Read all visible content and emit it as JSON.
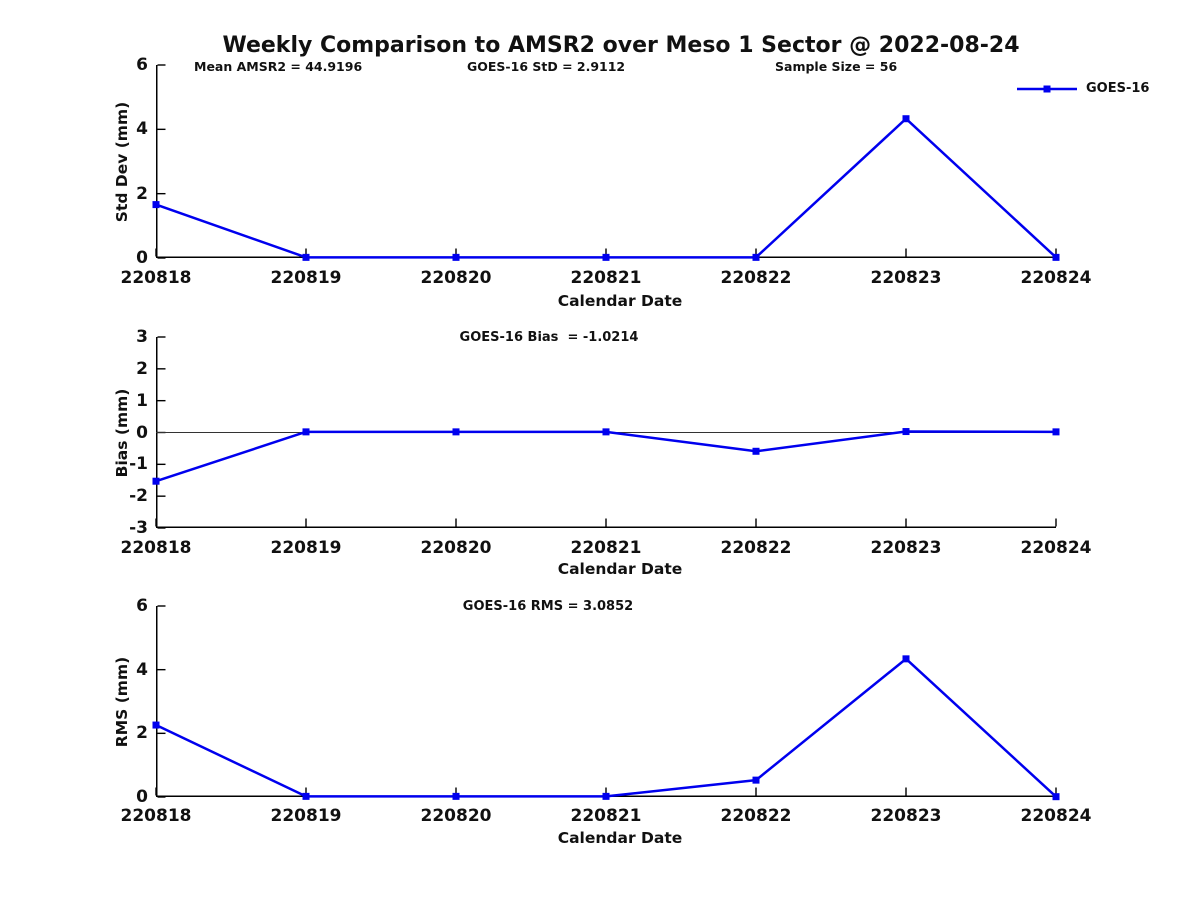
{
  "title": "Weekly Comparison to AMSR2 over Meso 1 Sector @ 2022-08-24",
  "accent_color": "#0000ee",
  "chart_data": [
    {
      "type": "line",
      "panel": "std-dev",
      "annotations": [
        "Mean AMSR2 = 44.9196",
        "GOES-16 StD = 2.9112",
        "Sample Size = 56"
      ],
      "categories": [
        "220818",
        "220819",
        "220820",
        "220821",
        "220822",
        "220823",
        "220824"
      ],
      "series": [
        {
          "name": "GOES-16",
          "values": [
            1.66,
            0.02,
            0.02,
            0.02,
            0.02,
            4.33,
            0.02
          ]
        }
      ],
      "xlabel": "Calendar Date",
      "ylabel": "Std Dev (mm)",
      "ylim": [
        0,
        6
      ],
      "yticks": [
        0,
        2,
        4,
        6
      ],
      "zero_line": false,
      "legend": {
        "label": "GOES-16",
        "position": "top-right"
      }
    },
    {
      "type": "line",
      "panel": "bias",
      "title": "GOES-16 Bias  = -1.0214",
      "categories": [
        "220818",
        "220819",
        "220820",
        "220821",
        "220822",
        "220823",
        "220824"
      ],
      "series": [
        {
          "name": "GOES-16",
          "values": [
            -1.53,
            0.02,
            0.02,
            0.02,
            -0.59,
            0.03,
            0.02
          ]
        }
      ],
      "xlabel": "Calendar Date",
      "ylabel": "Bias (mm)",
      "ylim": [
        -3,
        3
      ],
      "yticks": [
        3,
        2,
        1,
        0,
        -1,
        -2,
        -3
      ],
      "zero_line": true
    },
    {
      "type": "line",
      "panel": "rms",
      "title": "GOES-16 RMS = 3.0852",
      "categories": [
        "220818",
        "220819",
        "220820",
        "220821",
        "220822",
        "220823",
        "220824"
      ],
      "series": [
        {
          "name": "GOES-16",
          "values": [
            2.26,
            0.02,
            0.02,
            0.02,
            0.53,
            4.34,
            0.01
          ]
        }
      ],
      "xlabel": "Calendar Date",
      "ylabel": "RMS (mm)",
      "ylim": [
        0,
        6
      ],
      "yticks": [
        0,
        2,
        4,
        6
      ],
      "zero_line": false
    }
  ]
}
